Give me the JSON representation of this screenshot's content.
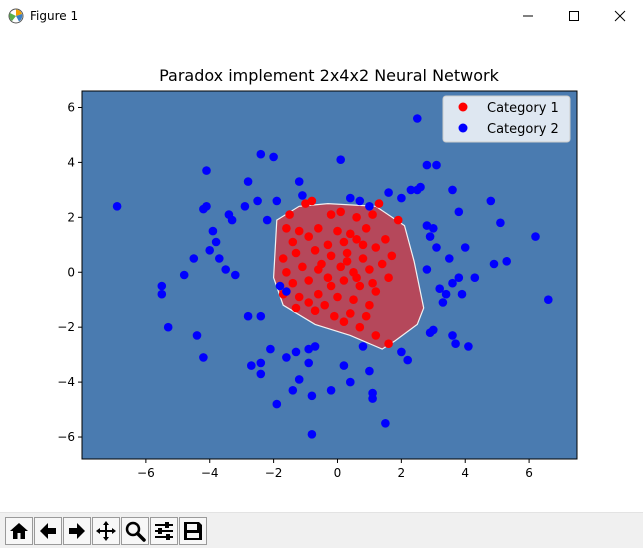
{
  "window": {
    "title": "Figure 1",
    "icons": {
      "app": "matplotlib-logo-icon",
      "minimize": "minimize-icon",
      "maximize": "maximize-icon",
      "close": "close-icon"
    }
  },
  "chart_data": {
    "type": "scatter",
    "title": "Paradox implement 2x4x2 Neural Network",
    "xlabel": "",
    "ylabel": "",
    "xlim": [
      -8.0,
      7.5
    ],
    "ylim": [
      -6.8,
      6.6
    ],
    "xticks": [
      -6,
      -4,
      -2,
      0,
      2,
      4,
      6
    ],
    "yticks": [
      -6,
      -4,
      -2,
      0,
      2,
      4,
      6
    ],
    "xticklabels": [
      "−6",
      "−4",
      "−2",
      "0",
      "2",
      "4",
      "6"
    ],
    "yticklabels": [
      "−6",
      "−4",
      "−2",
      "0",
      "2",
      "4",
      "6"
    ],
    "grid": false,
    "legend_position": "top-right",
    "colors": {
      "background_region": "#4a7bb0",
      "decision_region": "#b5485b",
      "boundary": "#f2f2f2",
      "category1": "#ff0000",
      "category2": "#0000ff"
    },
    "decision_region": [
      [
        -1.9,
        1.9
      ],
      [
        -1.2,
        2.4
      ],
      [
        -0.3,
        2.5
      ],
      [
        1.2,
        2.4
      ],
      [
        2.1,
        1.7
      ],
      [
        2.4,
        0.4
      ],
      [
        2.7,
        -1.3
      ],
      [
        2.5,
        -1.9
      ],
      [
        1.8,
        -2.5
      ],
      [
        1.4,
        -2.8
      ],
      [
        0.4,
        -2.3
      ],
      [
        -0.7,
        -1.9
      ],
      [
        -1.7,
        -1.2
      ],
      [
        -2.0,
        -0.2
      ]
    ],
    "series": [
      {
        "name": "Category 1",
        "color": "#ff0000",
        "points": [
          [
            -1.5,
            2.1
          ],
          [
            -1.0,
            2.5
          ],
          [
            -0.8,
            2.6
          ],
          [
            1.3,
            2.5
          ],
          [
            -0.2,
            2.1
          ],
          [
            0.1,
            2.2
          ],
          [
            0.6,
            2.0
          ],
          [
            1.1,
            2.1
          ],
          [
            1.9,
            1.9
          ],
          [
            -1.6,
            1.6
          ],
          [
            -1.2,
            1.5
          ],
          [
            -0.6,
            1.6
          ],
          [
            0.0,
            1.5
          ],
          [
            0.4,
            1.4
          ],
          [
            0.9,
            1.6
          ],
          [
            1.5,
            1.2
          ],
          [
            -1.4,
            1.1
          ],
          [
            -0.9,
            1.3
          ],
          [
            -0.3,
            1.0
          ],
          [
            0.2,
            1.1
          ],
          [
            0.6,
            1.2
          ],
          [
            1.2,
            0.9
          ],
          [
            1.7,
            0.6
          ],
          [
            -1.7,
            0.5
          ],
          [
            -1.3,
            0.7
          ],
          [
            -0.7,
            0.8
          ],
          [
            -0.2,
            0.6
          ],
          [
            0.3,
            0.7
          ],
          [
            0.8,
            0.5
          ],
          [
            1.4,
            0.3
          ],
          [
            -1.6,
            0.0
          ],
          [
            -1.1,
            0.2
          ],
          [
            -0.5,
            0.3
          ],
          [
            0.1,
            0.2
          ],
          [
            0.5,
            0.0
          ],
          [
            1.0,
            0.1
          ],
          [
            1.6,
            -0.2
          ],
          [
            -1.4,
            -0.4
          ],
          [
            -0.9,
            -0.3
          ],
          [
            -0.3,
            -0.2
          ],
          [
            0.2,
            -0.3
          ],
          [
            0.7,
            -0.5
          ],
          [
            1.2,
            -0.7
          ],
          [
            -1.7,
            -0.8
          ],
          [
            -1.2,
            -0.9
          ],
          [
            -0.6,
            -0.8
          ],
          [
            0.0,
            -0.9
          ],
          [
            0.5,
            -1.0
          ],
          [
            1.0,
            -1.2
          ],
          [
            -1.3,
            -1.3
          ],
          [
            -0.7,
            -1.4
          ],
          [
            -0.1,
            -1.6
          ],
          [
            0.4,
            -1.5
          ],
          [
            0.9,
            -1.6
          ],
          [
            -0.4,
            -1.2
          ],
          [
            0.2,
            -1.8
          ],
          [
            0.7,
            -2.0
          ],
          [
            1.2,
            -2.3
          ],
          [
            1.6,
            -2.6
          ],
          [
            -0.9,
            -1.1
          ],
          [
            0.6,
            -0.2
          ],
          [
            0.3,
            0.4
          ],
          [
            -0.2,
            -0.5
          ],
          [
            1.1,
            -0.4
          ],
          [
            0.8,
            1.0
          ],
          [
            -0.6,
            0.1
          ]
        ]
      },
      {
        "name": "Category 2",
        "color": "#0000ff",
        "points": [
          [
            -6.9,
            2.4
          ],
          [
            -5.5,
            -0.8
          ],
          [
            -5.5,
            -0.5
          ],
          [
            -5.3,
            -2.0
          ],
          [
            -4.8,
            -0.1
          ],
          [
            -4.5,
            0.5
          ],
          [
            -4.4,
            -2.3
          ],
          [
            -4.2,
            -3.1
          ],
          [
            -4.2,
            2.3
          ],
          [
            -4.1,
            2.4
          ],
          [
            -4.1,
            3.7
          ],
          [
            -4.0,
            0.8
          ],
          [
            -3.9,
            1.5
          ],
          [
            -3.8,
            1.1
          ],
          [
            -3.7,
            0.5
          ],
          [
            -3.5,
            0.1
          ],
          [
            -3.4,
            2.1
          ],
          [
            -3.3,
            1.9
          ],
          [
            -3.2,
            -0.1
          ],
          [
            -2.9,
            2.4
          ],
          [
            -2.8,
            3.3
          ],
          [
            -2.8,
            -1.6
          ],
          [
            -2.7,
            -3.4
          ],
          [
            -2.5,
            2.6
          ],
          [
            -2.4,
            4.3
          ],
          [
            -2.4,
            -1.6
          ],
          [
            -2.4,
            -3.3
          ],
          [
            -2.4,
            -3.7
          ],
          [
            -2.2,
            1.9
          ],
          [
            -2.1,
            -2.8
          ],
          [
            -2.0,
            4.2
          ],
          [
            -1.9,
            2.6
          ],
          [
            -1.9,
            -4.8
          ],
          [
            -1.8,
            -0.5
          ],
          [
            -1.6,
            -0.7
          ],
          [
            -1.6,
            -3.1
          ],
          [
            -1.4,
            -4.3
          ],
          [
            -1.3,
            -2.9
          ],
          [
            -1.2,
            3.3
          ],
          [
            -1.2,
            -3.9
          ],
          [
            -1.1,
            2.8
          ],
          [
            -0.9,
            -2.8
          ],
          [
            -0.9,
            -3.3
          ],
          [
            -0.8,
            -4.5
          ],
          [
            -0.8,
            -5.9
          ],
          [
            -0.7,
            -2.7
          ],
          [
            -0.2,
            -4.3
          ],
          [
            0.1,
            4.1
          ],
          [
            0.2,
            -3.4
          ],
          [
            0.4,
            2.7
          ],
          [
            0.4,
            -4.0
          ],
          [
            0.7,
            2.6
          ],
          [
            0.8,
            -2.7
          ],
          [
            1.0,
            -3.6
          ],
          [
            1.0,
            2.4
          ],
          [
            1.1,
            -4.4
          ],
          [
            1.1,
            -4.6
          ],
          [
            1.5,
            -5.5
          ],
          [
            1.6,
            2.9
          ],
          [
            2.0,
            -2.9
          ],
          [
            2.0,
            2.7
          ],
          [
            2.2,
            -3.2
          ],
          [
            2.3,
            3.0
          ],
          [
            2.5,
            5.6
          ],
          [
            2.5,
            3.0
          ],
          [
            2.6,
            3.1
          ],
          [
            2.8,
            3.9
          ],
          [
            2.8,
            1.7
          ],
          [
            2.8,
            0.1
          ],
          [
            2.9,
            1.3
          ],
          [
            2.9,
            -2.2
          ],
          [
            3.0,
            1.6
          ],
          [
            3.0,
            -2.1
          ],
          [
            3.1,
            3.9
          ],
          [
            3.1,
            0.9
          ],
          [
            3.2,
            -0.6
          ],
          [
            3.3,
            -1.1
          ],
          [
            3.4,
            -0.8
          ],
          [
            3.5,
            0.5
          ],
          [
            3.6,
            -0.4
          ],
          [
            3.6,
            -2.3
          ],
          [
            3.6,
            3.0
          ],
          [
            3.7,
            -2.6
          ],
          [
            3.8,
            -0.2
          ],
          [
            3.8,
            2.2
          ],
          [
            3.9,
            -0.8
          ],
          [
            4.0,
            0.9
          ],
          [
            4.3,
            -0.2
          ],
          [
            4.1,
            -2.7
          ],
          [
            4.8,
            2.6
          ],
          [
            4.9,
            0.3
          ],
          [
            5.1,
            1.8
          ],
          [
            5.3,
            0.4
          ],
          [
            6.2,
            1.3
          ],
          [
            6.6,
            -1.0
          ]
        ]
      }
    ]
  },
  "toolbar": {
    "buttons": [
      {
        "name": "home-button",
        "icon": "home-icon"
      },
      {
        "name": "back-button",
        "icon": "arrow-left-icon"
      },
      {
        "name": "forward-button",
        "icon": "arrow-right-icon"
      },
      {
        "name": "pan-button",
        "icon": "move-icon"
      },
      {
        "name": "zoom-button",
        "icon": "zoom-icon"
      },
      {
        "name": "subplots-button",
        "icon": "sliders-icon"
      },
      {
        "name": "save-button",
        "icon": "save-icon"
      }
    ]
  }
}
